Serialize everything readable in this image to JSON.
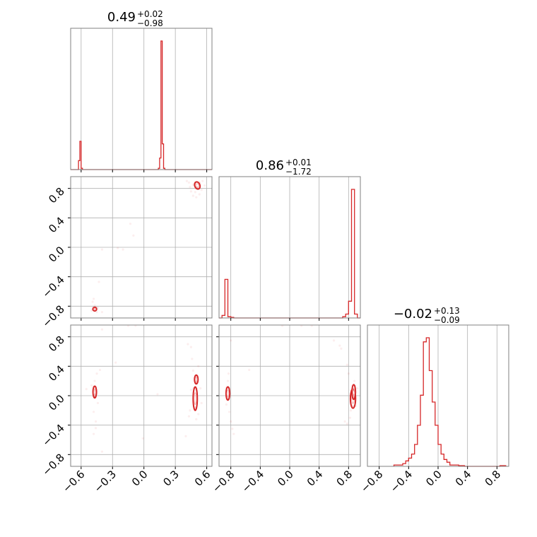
{
  "chart_data": {
    "type": "corner",
    "color": "#d62728",
    "parameters": [
      {
        "title": {
          "value": "0.49",
          "plus": "+0.02",
          "minus": "−0.98"
        },
        "range": [
          -0.7,
          0.65
        ],
        "ticks": [
          -0.6,
          -0.3,
          0.0,
          0.3,
          0.6
        ],
        "tick_labels": [
          "−0.6",
          "−0.3",
          "0.0",
          "0.3",
          "0.6"
        ],
        "hist": {
          "edges_start": -0.7,
          "bin_width": 0.0125,
          "heights": [
            0,
            0,
            0,
            0,
            0,
            0,
            0.07,
            0.22,
            0.01,
            0,
            0,
            0,
            0,
            0,
            0,
            0,
            0,
            0,
            0,
            0,
            0,
            0,
            0,
            0,
            0,
            0,
            0,
            0,
            0,
            0,
            0,
            0,
            0,
            0,
            0,
            0,
            0,
            0,
            0,
            0,
            0,
            0,
            0,
            0,
            0,
            0,
            0,
            0,
            0,
            0,
            0,
            0,
            0,
            0,
            0,
            0,
            0,
            0,
            0,
            0,
            0,
            0,
            0,
            0,
            0,
            0,
            0,
            0.01,
            0.09,
            1.0,
            0.2,
            0.01,
            0,
            0,
            0,
            0,
            0,
            0,
            0,
            0,
            0,
            0,
            0,
            0,
            0,
            0,
            0,
            0,
            0,
            0,
            0,
            0,
            0,
            0,
            0,
            0,
            0,
            0,
            0,
            0,
            0,
            0,
            0,
            0,
            0,
            0,
            0,
            0
          ]
        }
      },
      {
        "title": {
          "value": "0.86",
          "plus": "+0.01",
          "minus": "−1.72"
        },
        "range": [
          -0.96,
          0.96
        ],
        "ticks": [
          -0.8,
          -0.4,
          0.0,
          0.4,
          0.8
        ],
        "tick_labels": [
          "−0.8",
          "−0.4",
          "0.0",
          "0.4",
          "0.8"
        ],
        "hist": {
          "edges_start": -0.96,
          "bin_width": 0.04,
          "heights": [
            0,
            0.02,
            0.3,
            0.01,
            0.005,
            0,
            0,
            0,
            0,
            0,
            0,
            0,
            0,
            0,
            0,
            0,
            0,
            0,
            0,
            0,
            0,
            0,
            0,
            0,
            0,
            0,
            0,
            0,
            0,
            0,
            0,
            0,
            0,
            0,
            0,
            0,
            0,
            0,
            0,
            0,
            0,
            0,
            0.01,
            0.03,
            0.13,
            1.0,
            0.03,
            0
          ]
        }
      },
      {
        "title": {
          "value": "−0.02",
          "plus": "+0.13",
          "minus": "−0.09"
        },
        "range": [
          -0.96,
          0.96
        ],
        "ticks": [
          -0.8,
          -0.4,
          0.0,
          0.4,
          0.8
        ],
        "tick_labels": [
          "−0.8",
          "−0.4",
          "0.0",
          "0.4",
          "0.8"
        ],
        "hist": {
          "edges_start": -0.6,
          "bin_width": 0.04,
          "heights": [
            0.01,
            0.01,
            0.01,
            0.02,
            0.04,
            0.06,
            0.09,
            0.16,
            0.3,
            0.52,
            0.91,
            0.94,
            0.7,
            0.47,
            0.3,
            0.16,
            0.09,
            0.05,
            0.03,
            0.01,
            0.01,
            0.01,
            0.005,
            0.005,
            0,
            0,
            0,
            0,
            0,
            0,
            0,
            0,
            0,
            0,
            0,
            0,
            0.005,
            0.005
          ]
        }
      }
    ],
    "pairs": [
      {
        "x": 0,
        "y": 1,
        "clusters": [
          {
            "cx": 0.51,
            "cy": 0.84,
            "rx": 0.025,
            "ry": 0.05,
            "angle": -20
          },
          {
            "cx": -0.47,
            "cy": -0.84,
            "rx": 0.018,
            "ry": 0.025,
            "angle": 0
          }
        ],
        "scatter": [
          [
            0.5,
            0.8
          ],
          [
            0.52,
            0.88
          ],
          [
            0.47,
            0.85
          ],
          [
            0.55,
            0.78
          ],
          [
            0.49,
            0.75
          ],
          [
            0.53,
            0.72
          ],
          [
            0.44,
            0.82
          ],
          [
            0.56,
            0.9
          ],
          [
            0.5,
            0.68
          ],
          [
            0.47,
            0.7
          ],
          [
            0.45,
            0.76
          ],
          [
            0.43,
            0.88
          ],
          [
            0.41,
            0.9
          ],
          [
            0.58,
            0.84
          ],
          [
            -0.47,
            -0.79
          ],
          [
            -0.49,
            -0.74
          ],
          [
            -0.45,
            -0.88
          ],
          [
            -0.5,
            -0.86
          ],
          [
            -0.44,
            -0.82
          ],
          [
            -0.48,
            -0.7
          ],
          [
            -0.43,
            -0.47
          ],
          [
            -0.4,
            -0.88
          ],
          [
            -0.13,
            0.32
          ],
          [
            -0.1,
            0.16
          ],
          [
            -0.2,
            -0.03
          ],
          [
            -0.25,
            -0.01
          ],
          [
            -0.4,
            -0.03
          ]
        ]
      },
      {
        "x": 0,
        "y": 2,
        "clusters": [
          {
            "cx": 0.49,
            "cy": -0.04,
            "rx": 0.02,
            "ry": 0.16,
            "angle": 0
          },
          {
            "cx": 0.5,
            "cy": 0.22,
            "rx": 0.012,
            "ry": 0.06,
            "angle": 0
          },
          {
            "cx": -0.47,
            "cy": 0.05,
            "rx": 0.012,
            "ry": 0.08,
            "angle": 0
          }
        ],
        "scatter": [
          [
            0.46,
            0.5
          ],
          [
            0.45,
            0.66
          ],
          [
            0.47,
            0.34
          ],
          [
            0.52,
            0.4
          ],
          [
            0.54,
            0.1
          ],
          [
            0.44,
            -0.2
          ],
          [
            0.52,
            -0.25
          ],
          [
            0.5,
            -0.32
          ],
          [
            0.45,
            0.08
          ],
          [
            0.55,
            -0.1
          ],
          [
            0.42,
            0.7
          ],
          [
            0.43,
            -0.28
          ],
          [
            -0.47,
            0.2
          ],
          [
            -0.48,
            -0.22
          ],
          [
            -0.46,
            -0.35
          ],
          [
            -0.48,
            -0.52
          ],
          [
            -0.45,
            0.3
          ],
          [
            -0.5,
            0.14
          ],
          [
            -0.44,
            -0.1
          ],
          [
            -0.46,
            -0.44
          ],
          [
            -0.42,
            0.35
          ],
          [
            -0.4,
            -0.76
          ],
          [
            -0.15,
            0.95
          ],
          [
            -0.08,
            0.95
          ],
          [
            -0.27,
            0.45
          ],
          [
            -0.4,
            0.9
          ],
          [
            -0.01,
            -0.58
          ],
          [
            0.13,
            0.02
          ],
          [
            0.4,
            -0.55
          ],
          [
            -0.55,
            0.09
          ]
        ]
      },
      {
        "x": 1,
        "y": 2,
        "clusters": [
          {
            "cx": 0.86,
            "cy": -0.04,
            "rx": 0.035,
            "ry": 0.13,
            "angle": 0
          },
          {
            "cx": 0.87,
            "cy": 0.05,
            "rx": 0.02,
            "ry": 0.1,
            "angle": 0
          },
          {
            "cx": -0.84,
            "cy": 0.03,
            "rx": 0.025,
            "ry": 0.09,
            "angle": 0
          }
        ],
        "scatter": [
          [
            0.6,
            0.75
          ],
          [
            0.68,
            0.68
          ],
          [
            0.7,
            0.64
          ],
          [
            0.78,
            0.42
          ],
          [
            0.8,
            0.3
          ],
          [
            0.82,
            -0.3
          ],
          [
            0.78,
            -0.38
          ],
          [
            0.83,
            -0.2
          ],
          [
            0.9,
            -0.14
          ],
          [
            0.75,
            -0.35
          ],
          [
            0.88,
            0.2
          ],
          [
            0.92,
            0.1
          ],
          [
            -0.84,
            0.2
          ],
          [
            -0.82,
            -0.22
          ],
          [
            -0.8,
            -0.35
          ],
          [
            -0.78,
            -0.45
          ],
          [
            -0.86,
            -0.12
          ],
          [
            -0.83,
            0.3
          ],
          [
            -0.76,
            -0.52
          ],
          [
            -0.1,
            0.95
          ],
          [
            0.16,
            0.95
          ],
          [
            0.3,
            0.95
          ],
          [
            -0.8,
            0.75
          ],
          [
            -0.55,
            0.35
          ]
        ]
      }
    ]
  }
}
